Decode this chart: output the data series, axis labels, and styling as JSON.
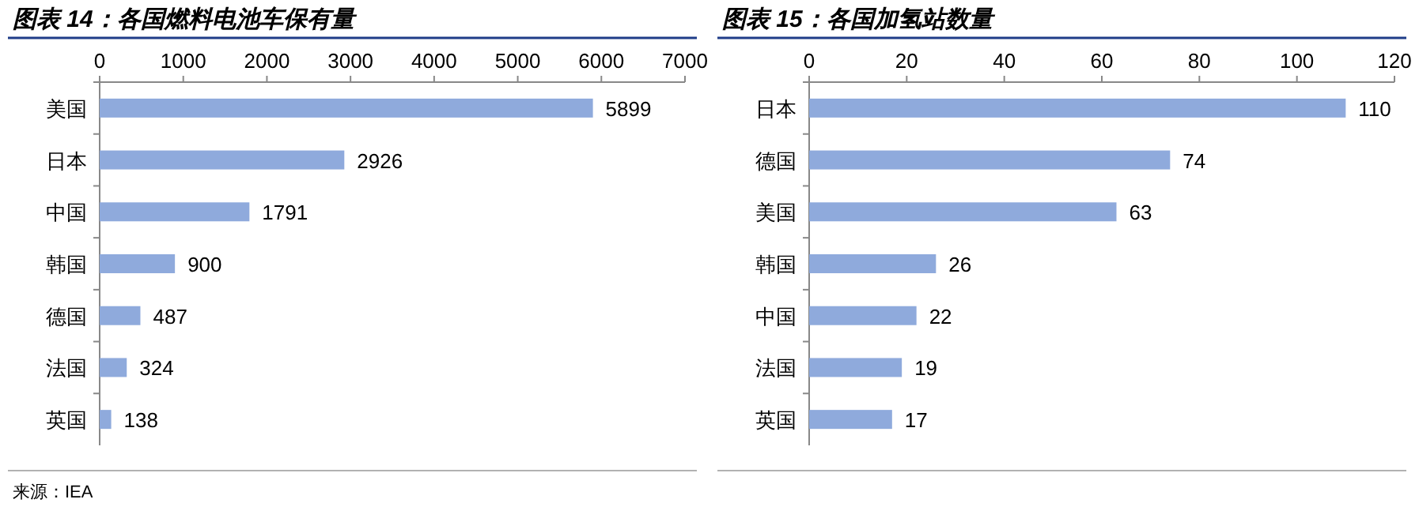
{
  "chart_data": [
    {
      "type": "bar",
      "orientation": "horizontal",
      "title": "图表 14：各国燃料电池车保有量",
      "categories": [
        "美国",
        "日本",
        "中国",
        "韩国",
        "德国",
        "法国",
        "英国"
      ],
      "values": [
        5899,
        2926,
        1791,
        900,
        487,
        324,
        138
      ],
      "color": "#8faadc",
      "xlim": [
        0,
        7000
      ],
      "xticks": [
        0,
        1000,
        2000,
        3000,
        4000,
        5000,
        6000,
        7000
      ],
      "data_labels": true,
      "annotations": [
        "来源：IEA"
      ]
    },
    {
      "type": "bar",
      "orientation": "horizontal",
      "title": "图表 15：各国加氢站数量",
      "categories": [
        "日本",
        "德国",
        "美国",
        "韩国",
        "中国",
        "法国",
        "英国"
      ],
      "values": [
        110,
        74,
        63,
        26,
        22,
        19,
        17
      ],
      "color": "#8faadc",
      "xlim": [
        0,
        120
      ],
      "xticks": [
        0,
        20,
        40,
        60,
        80,
        100,
        120
      ],
      "data_labels": true
    }
  ]
}
